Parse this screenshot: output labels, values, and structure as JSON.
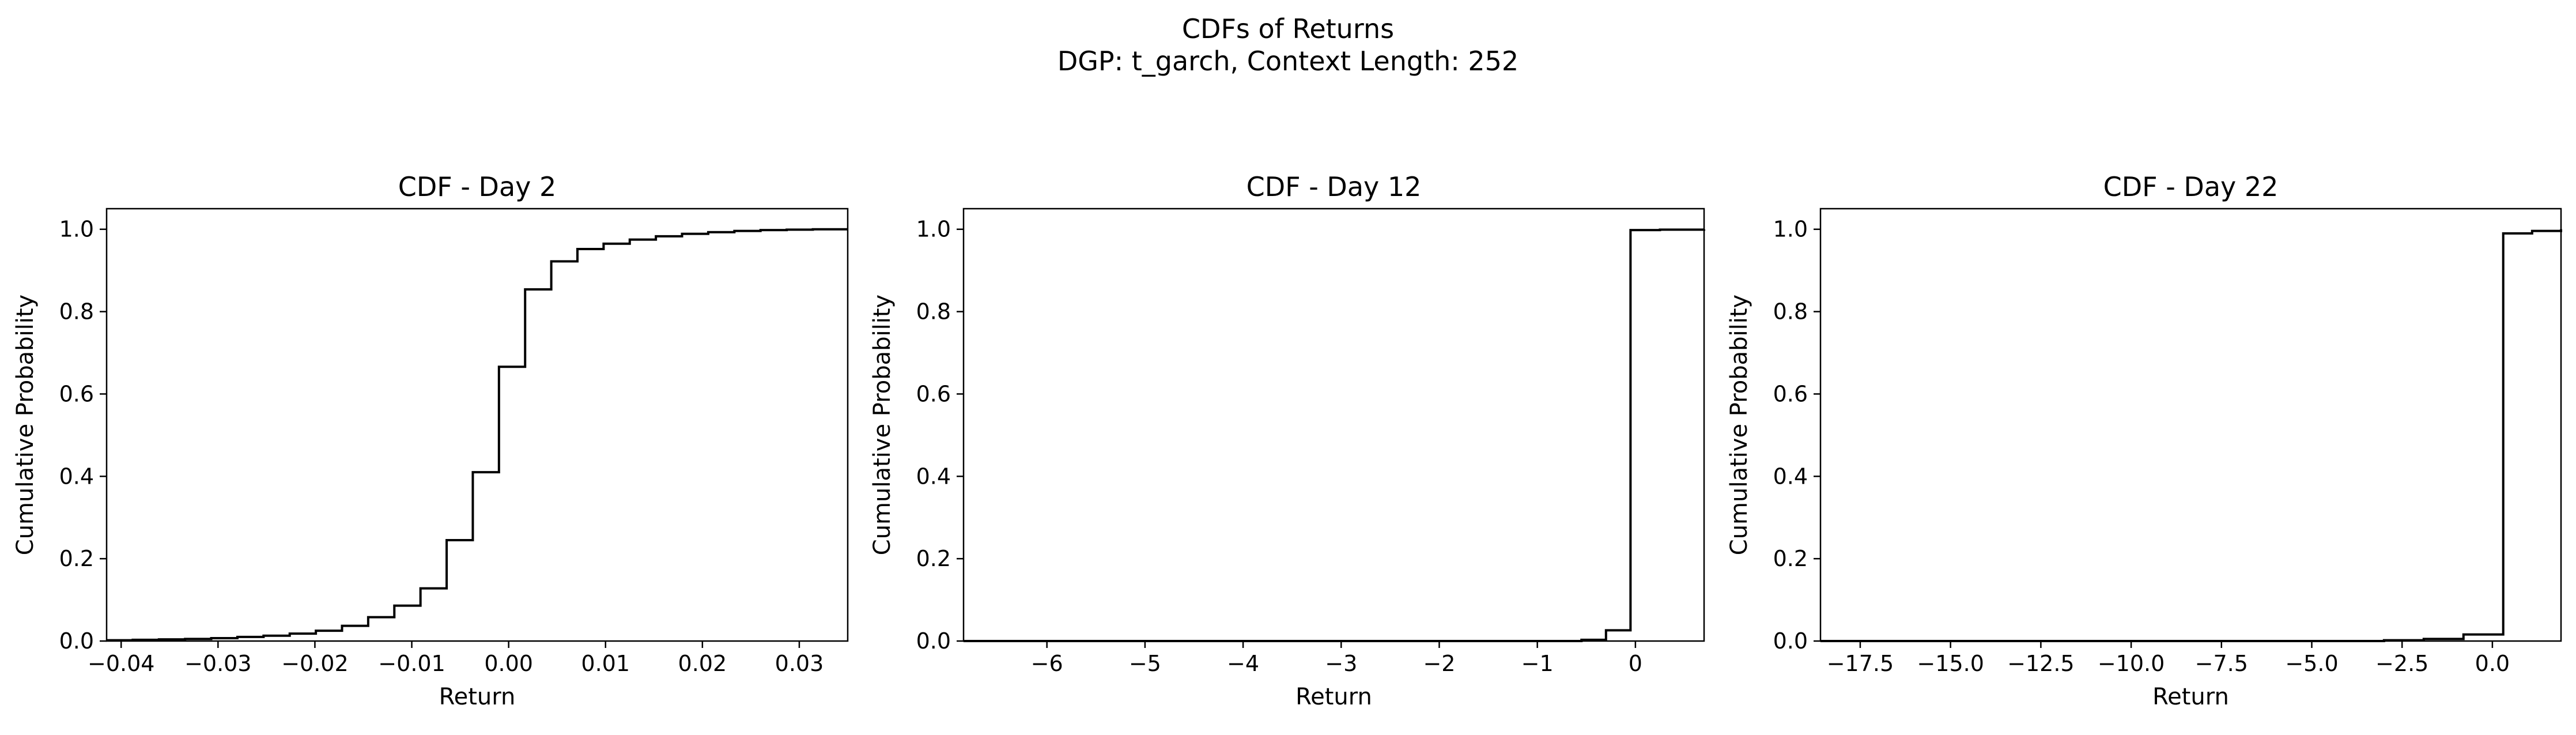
{
  "suptitle": {
    "line1": "CDFs of Returns",
    "line2": "DGP: t_garch, Context Length: 252"
  },
  "chart_data": [
    {
      "type": "line",
      "step": true,
      "title": "CDF - Day 2",
      "xlabel": "Return",
      "ylabel": "Cumulative Probability",
      "xlim": [
        -0.0415,
        0.035
      ],
      "ylim": [
        0,
        1.05
      ],
      "xticks": [
        -0.04,
        -0.03,
        -0.02,
        -0.01,
        0.0,
        0.01,
        0.02,
        0.03
      ],
      "xtick_labels": [
        "−0.04",
        "−0.03",
        "−0.02",
        "−0.01",
        "0.00",
        "0.01",
        "0.02",
        "0.03"
      ],
      "yticks": [
        0.0,
        0.2,
        0.4,
        0.6,
        0.8,
        1.0
      ],
      "ytick_labels": [
        "0.0",
        "0.2",
        "0.4",
        "0.6",
        "0.8",
        "1.0"
      ],
      "color": "#000000",
      "x": [
        -0.0415,
        -0.0388,
        -0.0361,
        -0.0334,
        -0.0307,
        -0.028,
        -0.0253,
        -0.0226,
        -0.0199,
        -0.0172,
        -0.0145,
        -0.0118,
        -0.0091,
        -0.0064,
        -0.0037,
        -0.001,
        0.0017,
        0.0044,
        0.0071,
        0.0098,
        0.0125,
        0.0152,
        0.0179,
        0.0206,
        0.0233,
        0.026,
        0.0287,
        0.0314,
        0.035
      ],
      "y": [
        0.002,
        0.003,
        0.004,
        0.005,
        0.007,
        0.01,
        0.013,
        0.018,
        0.025,
        0.037,
        0.058,
        0.086,
        0.128,
        0.245,
        0.41,
        0.666,
        0.854,
        0.922,
        0.952,
        0.965,
        0.975,
        0.983,
        0.989,
        0.993,
        0.996,
        0.998,
        0.999,
        1.0,
        1.0
      ]
    },
    {
      "type": "line",
      "step": true,
      "title": "CDF - Day 12",
      "xlabel": "Return",
      "ylabel": "Cumulative Probability",
      "xlim": [
        -6.85,
        0.7
      ],
      "ylim": [
        0,
        1.05
      ],
      "xticks": [
        -6,
        -5,
        -4,
        -3,
        -2,
        -1,
        0
      ],
      "xtick_labels": [
        "−6",
        "−5",
        "−4",
        "−3",
        "−2",
        "−1",
        "0"
      ],
      "yticks": [
        0.0,
        0.2,
        0.4,
        0.6,
        0.8,
        1.0
      ],
      "ytick_labels": [
        "0.0",
        "0.2",
        "0.4",
        "0.6",
        "0.8",
        "1.0"
      ],
      "color": "#000000",
      "x": [
        -6.85,
        -0.55,
        -0.3,
        -0.05,
        0.25,
        0.7
      ],
      "y": [
        0.0,
        0.003,
        0.026,
        0.998,
        0.999,
        1.0
      ]
    },
    {
      "type": "line",
      "step": true,
      "title": "CDF - Day 22",
      "xlabel": "Return",
      "ylabel": "Cumulative Probability",
      "xlim": [
        -18.6,
        1.9
      ],
      "ylim": [
        0,
        1.05
      ],
      "xticks": [
        -17.5,
        -15.0,
        -12.5,
        -10.0,
        -7.5,
        -5.0,
        -2.5,
        0.0
      ],
      "xtick_labels": [
        "−17.5",
        "−15.0",
        "−12.5",
        "−10.0",
        "−7.5",
        "−5.0",
        "−2.5",
        "0.0"
      ],
      "yticks": [
        0.0,
        0.2,
        0.4,
        0.6,
        0.8,
        1.0
      ],
      "ytick_labels": [
        "0.0",
        "0.2",
        "0.4",
        "0.6",
        "0.8",
        "1.0"
      ],
      "color": "#000000",
      "x": [
        -18.6,
        -3.0,
        -1.9,
        -0.8,
        0.3,
        1.1,
        1.9
      ],
      "y": [
        0.0,
        0.002,
        0.005,
        0.016,
        0.99,
        0.996,
        1.0
      ]
    }
  ]
}
